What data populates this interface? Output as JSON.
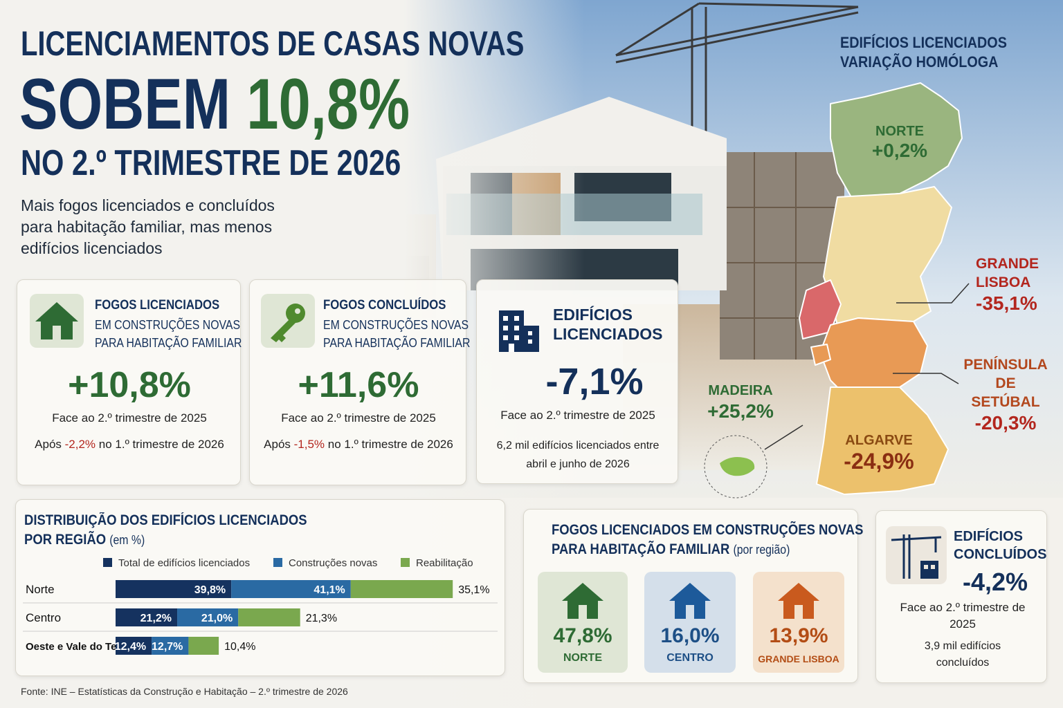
{
  "header": {
    "line1": "LICENCIAMENTOS DE CASAS NOVAS",
    "line2_word": "SOBEM",
    "line2_value": "10,8%",
    "line3": "NO 2.º TRIMESTRE DE 2026",
    "subtitle": "Mais fogos licenciados e concluídos para habitação familiar, mas menos edifícios licenciados"
  },
  "cards": [
    {
      "title": "FOGOS LICENCIADOS",
      "lines": [
        "EM CONSTRUÇÕES NOVAS",
        "PARA HABITAÇÃO FAMILIAR"
      ],
      "value": "+10,8%",
      "note": "Face ao 2.º trimestre de 2025",
      "after_prefix": "Após",
      "after_value": "-2,2%",
      "after_suffix": "no 1.º trimestre de 2026"
    },
    {
      "title": "FOGOS CONCLUÍDOS",
      "lines": [
        "EM CONSTRUÇÕES NOVAS",
        "PARA HABITAÇÃO FAMILIAR"
      ],
      "value": "+11,6%",
      "note": "Face ao 2.º trimestre de 2025",
      "after_prefix": "Após",
      "after_value": "-1,5%",
      "after_suffix": "no 1.º trimestre de 2026"
    },
    {
      "title": "EDIFÍCIOS LICENCIADOS",
      "value": "-7,1%",
      "note": "Face ao 2.º trimestre de 2025",
      "detail": "6,2 mil edifícios licenciados entre abril e junho de 2026"
    }
  ],
  "map": {
    "title_lines": [
      "EDIFÍCIOS LICENCIADOS",
      "VARIAÇÃO HOMÓLOGA"
    ],
    "regions": [
      {
        "name": "NORTE",
        "value": "+0,2%"
      },
      {
        "name": "GRANDE LISBOA",
        "value": "-35,1%"
      },
      {
        "name": "PENÍNSULA DE SETÚBAL",
        "value": "-20,3%"
      },
      {
        "name": "MADEIRA",
        "value": "+25,2%"
      },
      {
        "name": "ALGARVE",
        "value": "-24,9%"
      }
    ]
  },
  "distribution": {
    "title_lines": [
      "DISTRIBUIÇÃO DOS EDIFÍCIOS LICENCIADOS",
      "POR REGIÃO"
    ],
    "unit": "(em %)",
    "categories": [
      "Norte",
      "Centro",
      "Oeste e Vale do Tejo"
    ],
    "series": [
      {
        "name": "Total de edifícios licenciados",
        "color": "#15325f",
        "values": [
          39.8,
          21.2,
          12.4
        ],
        "value_labels": [
          "39,8%",
          "21,2%",
          "12,4%"
        ]
      },
      {
        "name": "Construções novas",
        "color": "#2a6aa3",
        "values": [
          41.1,
          21.0,
          12.7
        ],
        "value_labels": [
          "41,1%",
          "21,0%",
          "12,7%"
        ]
      },
      {
        "name": "Reabilitação",
        "color": "#7aa84e",
        "values": [
          35.1,
          21.3,
          10.4
        ],
        "value_labels": [
          "35,1%",
          "21,3%",
          "10,4%"
        ]
      }
    ]
  },
  "fogos_regiao": {
    "title_lines": [
      "FOGOS LICENCIADOS EM CONSTRUÇÕES NOVAS",
      "PARA HABITAÇÃO FAMILIAR"
    ],
    "unit": "(por região)",
    "tiles": [
      {
        "value": "47,8%",
        "name": "NORTE"
      },
      {
        "value": "16,0%",
        "name": "CENTRO"
      },
      {
        "value": "13,9%",
        "name": "GRANDE LISBOA"
      }
    ]
  },
  "concluidos": {
    "title": "EDIFÍCIOS CONCLUÍDOS",
    "value": "-4,2%",
    "note": "Face ao 2.º trimestre de 2025",
    "detail": "3,9 mil edifícios concluídos"
  },
  "source": "Fonte: INE – Estatísticas da Construção e Habitação – 2.º trimestre de 2026"
}
